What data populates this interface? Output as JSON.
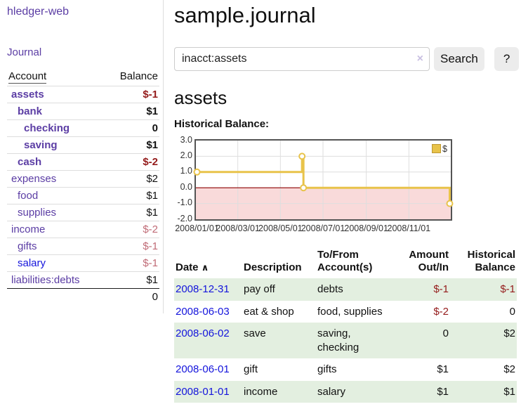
{
  "colors": {
    "purple": "#5b3da4",
    "blue": "#1414dc",
    "negative": "#941b1b",
    "negative_soft": "#c06b76",
    "stripe_green": "#e3efe0",
    "gold": "#e8c34a",
    "zero_line": "#8b0000",
    "negative_region": "#f9dada"
  },
  "sidebar": {
    "app_title": "hledger-web",
    "journal_label": "Journal",
    "accounts_table": {
      "header": {
        "account": "Account",
        "balance": "Balance"
      },
      "rows": [
        {
          "name": "assets",
          "balance": "$-1",
          "indent": 0,
          "bold": true,
          "balance_style": "neg-strong"
        },
        {
          "name": "bank",
          "balance": "$1",
          "indent": 1,
          "bold": true,
          "balance_style": "normal"
        },
        {
          "name": "checking",
          "balance": "0",
          "indent": 2,
          "bold": true,
          "balance_style": "normal"
        },
        {
          "name": "saving",
          "balance": "$1",
          "indent": 2,
          "bold": true,
          "balance_style": "normal"
        },
        {
          "name": "cash",
          "balance": "$-2",
          "indent": 1,
          "bold": true,
          "balance_style": "neg-strong"
        },
        {
          "name": "expenses",
          "balance": "$2",
          "indent": 0,
          "bold": false,
          "balance_style": "normal"
        },
        {
          "name": "food",
          "balance": "$1",
          "indent": 1,
          "bold": false,
          "balance_style": "normal"
        },
        {
          "name": "supplies",
          "balance": "$1",
          "indent": 1,
          "bold": false,
          "balance_style": "normal"
        },
        {
          "name": "income",
          "balance": "$-2",
          "indent": 0,
          "bold": false,
          "balance_style": "neg-soft"
        },
        {
          "name": "gifts",
          "balance": "$-1",
          "indent": 1,
          "bold": false,
          "balance_style": "neg-soft"
        },
        {
          "name": "salary",
          "balance": "$-1",
          "indent": 1,
          "bold": false,
          "balance_style": "neg-soft",
          "link_color": "blue"
        },
        {
          "name": "liabilities:debts",
          "balance": "$1",
          "indent": 0,
          "bold": false,
          "balance_style": "normal"
        }
      ],
      "total": "0"
    }
  },
  "header": {
    "title": "sample.journal"
  },
  "search": {
    "value": "inacct:assets",
    "clear_icon": "×",
    "button_label": "Search",
    "help_label": "?"
  },
  "account_page": {
    "heading": "assets",
    "chart_title": "Historical Balance:"
  },
  "chart_data": {
    "type": "line",
    "step": true,
    "title": "Historical Balance:",
    "legend": [
      {
        "label": "$",
        "color": "#e8c34a"
      }
    ],
    "points": [
      [
        "2008-01-01",
        1.0
      ],
      [
        "2008-06-01",
        2.0
      ],
      [
        "2008-06-03",
        0.0
      ],
      [
        "2008-12-31",
        -1.0
      ]
    ],
    "x_range": [
      "2008-01-01",
      "2008-12-31"
    ],
    "ylim": [
      -2.0,
      3.0
    ],
    "y_ticks": [
      "3.0",
      "2.0",
      "1.0",
      "0.0",
      "-1.0",
      "-2.0"
    ],
    "y_tick_values": [
      3,
      2,
      1,
      0,
      -1,
      -2
    ],
    "x_ticks": [
      "2008/01/01",
      "2008/03/01",
      "2008/05/01",
      "2008/07/01",
      "2008/09/01",
      "2008/11/01"
    ],
    "grid": true,
    "legend_position": "top-right",
    "negative_region_shaded": true
  },
  "transactions": {
    "headers": {
      "date": "Date",
      "sort_icon": "∧",
      "description": "Description",
      "accounts": "To/From Account(s)",
      "amount": "Amount Out/In",
      "balance": "Historical Balance"
    },
    "rows": [
      {
        "date": "2008-12-31",
        "description": "pay off",
        "accounts": "debts",
        "amount": "$-1",
        "amount_neg": true,
        "balance": "$-1",
        "balance_neg": true,
        "shaded": true
      },
      {
        "date": "2008-06-03",
        "description": "eat & shop",
        "accounts": "food, supplies",
        "amount": "$-2",
        "amount_neg": true,
        "balance": "0",
        "balance_neg": false,
        "shaded": false
      },
      {
        "date": "2008-06-02",
        "description": "save",
        "accounts": "saving,\nchecking",
        "amount": "0",
        "amount_neg": false,
        "balance": "$2",
        "balance_neg": false,
        "shaded": true
      },
      {
        "date": "2008-06-01",
        "description": "gift",
        "accounts": "gifts",
        "amount": "$1",
        "amount_neg": false,
        "balance": "$2",
        "balance_neg": false,
        "shaded": false
      },
      {
        "date": "2008-01-01",
        "description": "income",
        "accounts": "salary",
        "amount": "$1",
        "amount_neg": false,
        "balance": "$1",
        "balance_neg": false,
        "shaded": true
      }
    ]
  }
}
